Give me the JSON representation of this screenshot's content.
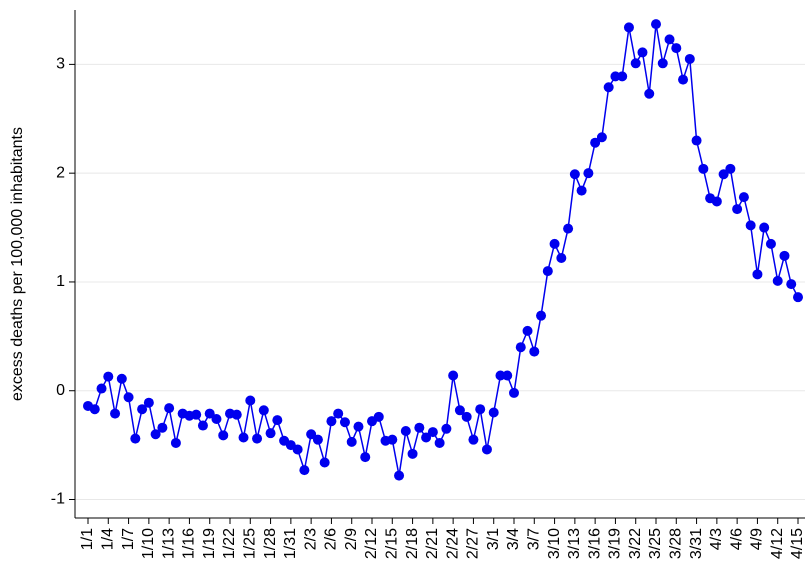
{
  "chart_data": {
    "type": "line",
    "ylabel": "excess deaths per 100,000 inhabitants",
    "categories": [
      "1/1",
      null,
      null,
      "1/4",
      null,
      null,
      "1/7",
      null,
      null,
      "1/10",
      null,
      null,
      "1/13",
      null,
      null,
      "1/16",
      null,
      null,
      "1/19",
      null,
      null,
      "1/22",
      null,
      null,
      "1/25",
      null,
      null,
      "1/28",
      null,
      null,
      "1/31",
      null,
      null,
      "2/3",
      null,
      null,
      "2/6",
      null,
      null,
      "2/9",
      null,
      null,
      "2/12",
      null,
      null,
      "2/15",
      null,
      null,
      "2/18",
      null,
      null,
      "2/21",
      null,
      null,
      "2/24",
      null,
      null,
      "2/27",
      null,
      null,
      "3/1",
      null,
      null,
      "3/4",
      null,
      null,
      "3/7",
      null,
      null,
      "3/10",
      null,
      null,
      "3/13",
      null,
      null,
      "3/16",
      null,
      null,
      "3/19",
      null,
      null,
      "3/22",
      null,
      null,
      "3/25",
      null,
      null,
      "3/28",
      null,
      null,
      "3/31",
      null,
      null,
      "4/3",
      null,
      null,
      "4/6",
      null,
      null,
      "4/9",
      null,
      null,
      "4/12",
      null,
      null,
      "4/15"
    ],
    "values": [
      -0.14,
      -0.17,
      0.02,
      0.13,
      -0.21,
      0.11,
      -0.06,
      -0.44,
      -0.17,
      -0.11,
      -0.4,
      -0.34,
      -0.16,
      -0.48,
      -0.21,
      -0.23,
      -0.22,
      -0.32,
      -0.21,
      -0.26,
      -0.41,
      -0.21,
      -0.22,
      -0.43,
      -0.09,
      -0.44,
      -0.18,
      -0.39,
      -0.27,
      -0.46,
      -0.5,
      -0.54,
      -0.73,
      -0.4,
      -0.45,
      -0.66,
      -0.28,
      -0.21,
      -0.29,
      -0.47,
      -0.33,
      -0.61,
      -0.28,
      -0.24,
      -0.46,
      -0.45,
      -0.78,
      -0.37,
      -0.58,
      -0.34,
      -0.43,
      -0.38,
      -0.48,
      -0.35,
      0.14,
      -0.18,
      -0.24,
      -0.45,
      -0.17,
      -0.54,
      -0.2,
      0.14,
      0.14,
      -0.02,
      0.4,
      0.55,
      0.36,
      0.69,
      1.1,
      1.35,
      1.22,
      1.49,
      1.99,
      1.84,
      2.0,
      2.28,
      2.33,
      2.79,
      2.89,
      2.89,
      3.34,
      3.01,
      3.11,
      2.73,
      3.37,
      3.01,
      3.23,
      3.15,
      2.86,
      3.05,
      2.3,
      2.04,
      1.77,
      1.74,
      1.99,
      2.04,
      1.67,
      1.78,
      1.52,
      1.07,
      1.5,
      1.35,
      1.01,
      1.24,
      0.98,
      0.86
    ],
    "color": "#0000ee",
    "ylim": [
      -1.17,
      3.5
    ],
    "yticks": [
      -1,
      0,
      1,
      2,
      3
    ],
    "grid": true
  }
}
